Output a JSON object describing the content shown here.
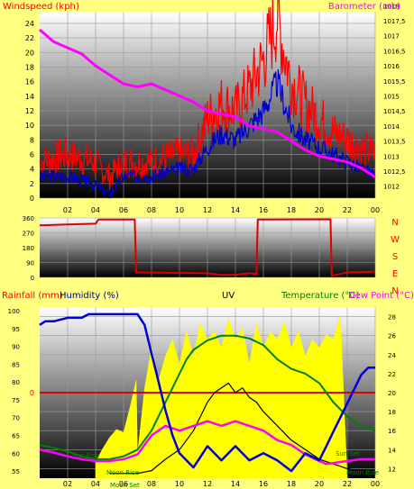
{
  "colors": {
    "background": "#ffff80",
    "windspeed": "#ff0000",
    "gust": "#ff0000",
    "avgwind": "#0000cc",
    "barometer": "#ff00ff",
    "direction": "#dd0000",
    "rainfall": "#dd0000",
    "humidity": "#0000dd",
    "uv": "#ffff00",
    "temperature": "#008000",
    "dewpoint": "#ff00ff",
    "black_series": "#000000",
    "label_red": "#ff0000",
    "label_blue": "#000080",
    "label_green": "#008000",
    "label_magenta": "#ff00ff"
  },
  "chart_data": [
    {
      "type": "line",
      "title": "",
      "ylabel": "Windspeed (kph)",
      "y2label": "Barometer (mb)",
      "xticks": [
        "02",
        "04",
        "06",
        "08",
        "10",
        "12",
        "14",
        "16",
        "18",
        "20",
        "22",
        "00"
      ],
      "ylim": [
        0,
        25.6
      ],
      "yticks": [
        "0",
        "2",
        "4",
        "6",
        "8",
        "10",
        "12",
        "14",
        "16",
        "18",
        "20",
        "22",
        "24"
      ],
      "y2lim": [
        1011.6,
        1017.8
      ],
      "y2ticks": [
        "1012",
        "1012,5",
        "1013",
        "1013,5",
        "1014",
        "1014,5",
        "1015",
        "1015,5",
        "1016",
        "1016,5",
        "1017",
        "1017,5",
        "1018"
      ],
      "series": [
        {
          "name": "Windspeed (kph)",
          "x": [
            0,
            2,
            3.8,
            5,
            6,
            8,
            10,
            11,
            12,
            13,
            14,
            15,
            16,
            16.5,
            17,
            17.5,
            18,
            19,
            20,
            21,
            22,
            23,
            24
          ],
          "y": [
            5,
            6,
            5,
            3,
            5,
            5,
            6,
            6,
            11,
            13,
            12,
            15,
            19,
            22,
            25,
            20,
            16,
            13,
            11,
            9,
            8,
            7,
            6
          ]
        },
        {
          "name": "",
          "x": [
            0,
            2,
            3.8,
            5,
            6,
            8,
            10,
            11,
            12,
            13,
            14,
            15,
            16,
            16.5,
            17,
            17.5,
            18,
            19,
            20,
            21,
            22,
            23,
            24
          ],
          "y": [
            3,
            3,
            2,
            0.5,
            3,
            3,
            4,
            4,
            7,
            9,
            8,
            10,
            12,
            14,
            16,
            13,
            10,
            8,
            7,
            6,
            5,
            4,
            3
          ]
        },
        {
          "name": "Barometer (mb)",
          "x": [
            0,
            1,
            2,
            3,
            4,
            5,
            6,
            7,
            8,
            9,
            10,
            11,
            12,
            13,
            14,
            15,
            16,
            17,
            18,
            19,
            20,
            21,
            22,
            23,
            24
          ],
          "y": [
            1017.2,
            1016.8,
            1016.6,
            1016.4,
            1016.0,
            1015.7,
            1015.4,
            1015.3,
            1015.4,
            1015.2,
            1015.0,
            1014.8,
            1014.5,
            1014.4,
            1014.3,
            1014.0,
            1013.9,
            1013.8,
            1013.5,
            1013.2,
            1013.0,
            1012.9,
            1012.8,
            1012.6,
            1012.3
          ]
        }
      ]
    },
    {
      "type": "line",
      "title": "",
      "ylabel": "",
      "y2label": "",
      "xticks": [
        "02",
        "04",
        "06",
        "08",
        "10",
        "12",
        "14",
        "16",
        "18",
        "20",
        "22",
        "00"
      ],
      "ylim": [
        0,
        360
      ],
      "yticks": [
        "0",
        "90",
        "180",
        "270",
        "360"
      ],
      "compass": [
        "N",
        "W",
        "S",
        "E",
        "N"
      ],
      "series": [
        {
          "name": "",
          "x": [
            0,
            2,
            4,
            4.2,
            6.8,
            6.9,
            12,
            13,
            14,
            14.5,
            15,
            15.5,
            15.6,
            20.8,
            20.9,
            22,
            24
          ],
          "y": [
            315,
            320,
            325,
            350,
            350,
            30,
            25,
            15,
            15,
            20,
            25,
            20,
            350,
            352,
            10,
            30,
            35
          ]
        }
      ]
    },
    {
      "type": "line",
      "title": "",
      "labels": [
        "Rainfall (mm)",
        "Humidity (%)",
        "UV",
        "Temperature (°C)",
        "Dew Point (°C)"
      ],
      "xticks": [
        "02",
        "04",
        "06",
        "08",
        "10",
        "12",
        "14",
        "16",
        "18",
        "20",
        "22",
        "00"
      ],
      "ylim": [
        53,
        101
      ],
      "yticks": [
        "55",
        "60",
        "65",
        "70",
        "75",
        "80",
        "85",
        "90",
        "95",
        "100"
      ],
      "y2lim": [
        11,
        29
      ],
      "y2ticks": [
        "12",
        "14",
        "16",
        "18",
        "20",
        "22",
        "24",
        "26",
        "28"
      ],
      "rain_marker": "0",
      "annotations": [
        "Sun Rise",
        "Moon Rise",
        "Moon Set",
        "Sun Set",
        "Moon Rise"
      ],
      "series": [
        {
          "name": "Humidity (%)",
          "x": [
            0,
            0.4,
            1,
            2,
            3,
            3.5,
            4,
            5,
            6,
            6.5,
            7,
            7.5,
            8,
            8.5,
            9,
            9.5,
            10,
            10.5,
            11,
            11.5,
            12,
            13,
            14,
            15,
            16,
            17,
            18,
            19,
            20,
            20.5,
            21,
            21.5,
            22,
            22.5,
            23,
            23.5,
            24
          ],
          "y": [
            96,
            97,
            97,
            98,
            98,
            99,
            99,
            99,
            99,
            99,
            99,
            96,
            88,
            80,
            72,
            65,
            60,
            58,
            56,
            59,
            62,
            58,
            62,
            58,
            60,
            58,
            55,
            60,
            58,
            62,
            66,
            70,
            74,
            78,
            82,
            84,
            84
          ]
        },
        {
          "name": "UV",
          "x": [
            4,
            4.5,
            5,
            5.5,
            6,
            6.5,
            6.9,
            7,
            7.5,
            8,
            8.5,
            9,
            9.5,
            10,
            10.5,
            11,
            11.5,
            12,
            12.5,
            13,
            13.5,
            14,
            14.5,
            15,
            15.5,
            16,
            16.5,
            17,
            17.5,
            18,
            18.5,
            19,
            19.5,
            20,
            20.5,
            21,
            21.5,
            22
          ],
          "y": [
            1.0,
            1.8,
            2.5,
            3.0,
            2.8,
            4.5,
            6.0,
            1.5,
            5.5,
            8.0,
            6.0,
            7.5,
            8.5,
            7.0,
            9.0,
            7.5,
            9.5,
            8.5,
            9.0,
            8.0,
            9.8,
            8.5,
            9.2,
            7.0,
            9.5,
            8.0,
            9.0,
            8.5,
            9.6,
            8.0,
            9.0,
            7.5,
            8.5,
            8.0,
            8.8,
            8.5,
            10.0,
            0
          ]
        },
        {
          "name": "Temperature (°C)",
          "x": [
            0,
            1,
            2,
            3,
            4,
            5,
            6,
            7,
            8,
            9,
            10,
            10.5,
            11,
            12,
            13,
            14,
            15,
            16,
            17,
            18,
            19,
            20,
            21,
            22,
            23,
            24
          ],
          "y": [
            14.5,
            14.2,
            13.8,
            13.3,
            13.0,
            13.0,
            13.3,
            14.0,
            16.0,
            19.0,
            22.0,
            23.5,
            24.5,
            25.5,
            26.0,
            26.0,
            25.7,
            25.0,
            23.5,
            22.5,
            22.0,
            21.0,
            19.0,
            17.5,
            16.5,
            16.0
          ]
        },
        {
          "name": "Dew Point (°C)",
          "x": [
            0,
            1,
            2,
            3,
            4,
            5,
            6,
            7,
            8,
            9,
            10,
            11,
            12,
            13,
            14,
            15,
            16,
            17,
            18,
            19,
            20,
            20.5,
            21,
            22,
            23,
            24
          ],
          "y": [
            14.0,
            13.7,
            13.3,
            13.0,
            12.8,
            12.8,
            13.0,
            13.5,
            15.5,
            16.5,
            16.0,
            16.5,
            17.0,
            16.5,
            17.0,
            16.5,
            16.0,
            15.0,
            14.5,
            13.5,
            12.8,
            12.5,
            12.6,
            12.8,
            13.0,
            13.0
          ]
        },
        {
          "name": "",
          "x": [
            5,
            6,
            7,
            8,
            9,
            10,
            10.5,
            11,
            11.5,
            12,
            12.5,
            13,
            13.5,
            14,
            14.5,
            15,
            15.5,
            16,
            17,
            18,
            19,
            20,
            21,
            22,
            23,
            24
          ],
          "y": [
            11.5,
            11.5,
            11.5,
            11.8,
            13.0,
            14.0,
            15.0,
            16.0,
            17.5,
            19.0,
            20.0,
            20.5,
            21.0,
            20.0,
            20.5,
            19.5,
            19.0,
            18.0,
            16.5,
            15.0,
            14.0,
            13.0,
            12.5,
            12.0,
            11.7,
            11.5
          ]
        }
      ]
    }
  ]
}
